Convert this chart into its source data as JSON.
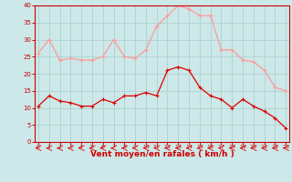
{
  "x": [
    0,
    1,
    2,
    3,
    4,
    5,
    6,
    7,
    8,
    9,
    10,
    11,
    12,
    13,
    14,
    15,
    16,
    17,
    18,
    19,
    20,
    21,
    22,
    23
  ],
  "wind_avg": [
    10.5,
    13.5,
    12.0,
    11.5,
    10.5,
    10.5,
    12.5,
    11.5,
    13.5,
    13.5,
    14.5,
    13.5,
    21,
    22,
    21,
    16,
    13.5,
    12.5,
    10,
    12.5,
    10.5,
    9,
    7,
    4
  ],
  "wind_gust": [
    26,
    30,
    24,
    24.5,
    24,
    24,
    25,
    30,
    25,
    24.5,
    27,
    34,
    37,
    40,
    39,
    37,
    37,
    27,
    27,
    24,
    23.5,
    21,
    16,
    15
  ],
  "bg_color": "#cce8e8",
  "grid_color": "#aacccc",
  "avg_color": "#dd0000",
  "gust_color": "#ff9999",
  "xlabel": "Vent moyen/en rafales ( km/h )",
  "xlabel_color": "#cc0000",
  "tick_color": "#cc0000",
  "spine_color": "#cc0000",
  "ylim": [
    0,
    40
  ],
  "yticks": [
    0,
    5,
    10,
    15,
    20,
    25,
    30,
    35,
    40
  ],
  "xticks": [
    0,
    1,
    2,
    3,
    4,
    5,
    6,
    7,
    8,
    9,
    10,
    11,
    12,
    13,
    14,
    15,
    16,
    17,
    18,
    19,
    20,
    21,
    22,
    23
  ]
}
